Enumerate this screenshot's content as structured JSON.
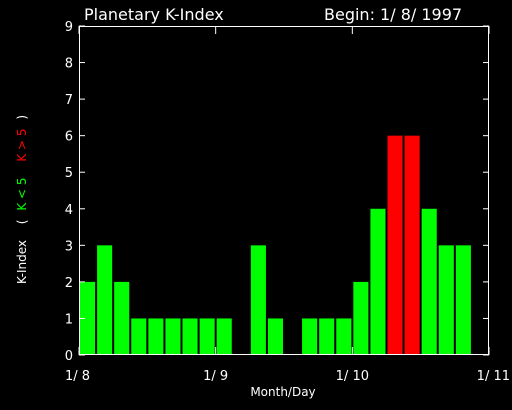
{
  "header": {
    "title": "Planetary K-Index",
    "begin": "Begin: 1/ 8/ 1997"
  },
  "ylabel": {
    "base": "K-Index",
    "open": "(",
    "low": "K < 5",
    "high": "K > 5",
    "close": ")"
  },
  "colors": {
    "background": "#000000",
    "axis": "#ffffff",
    "low": "#00ff00",
    "high": "#ff0000",
    "low_text": "#00ff00",
    "high_text": "#ff0000"
  },
  "chart_data": {
    "type": "bar",
    "title": "Planetary K-Index",
    "xlabel": "Month/Day",
    "ylabel": "K-Index",
    "ylim": [
      0,
      9
    ],
    "xlim": [
      0,
      24
    ],
    "yticks": [
      "0",
      "1",
      "2",
      "3",
      "4",
      "5",
      "6",
      "7",
      "8",
      "9"
    ],
    "xticks": [
      {
        "x": 0,
        "label": "1/ 8"
      },
      {
        "x": 8,
        "label": "1/ 9"
      },
      {
        "x": 16,
        "label": "1/ 10"
      },
      {
        "x": 24,
        "label": "1/ 11"
      }
    ],
    "threshold": 5,
    "bars": [
      {
        "x": 0,
        "value": 2
      },
      {
        "x": 1,
        "value": 3
      },
      {
        "x": 2,
        "value": 2
      },
      {
        "x": 3,
        "value": 1
      },
      {
        "x": 4,
        "value": 1
      },
      {
        "x": 5,
        "value": 1
      },
      {
        "x": 6,
        "value": 1
      },
      {
        "x": 7,
        "value": 1
      },
      {
        "x": 8,
        "value": 1
      },
      {
        "x": 10,
        "value": 3
      },
      {
        "x": 11,
        "value": 1
      },
      {
        "x": 13,
        "value": 1
      },
      {
        "x": 14,
        "value": 1
      },
      {
        "x": 15,
        "value": 1
      },
      {
        "x": 16,
        "value": 2
      },
      {
        "x": 17,
        "value": 4
      },
      {
        "x": 18,
        "value": 6
      },
      {
        "x": 19,
        "value": 6
      },
      {
        "x": 20,
        "value": 4
      },
      {
        "x": 21,
        "value": 3
      },
      {
        "x": 22,
        "value": 3
      }
    ]
  }
}
